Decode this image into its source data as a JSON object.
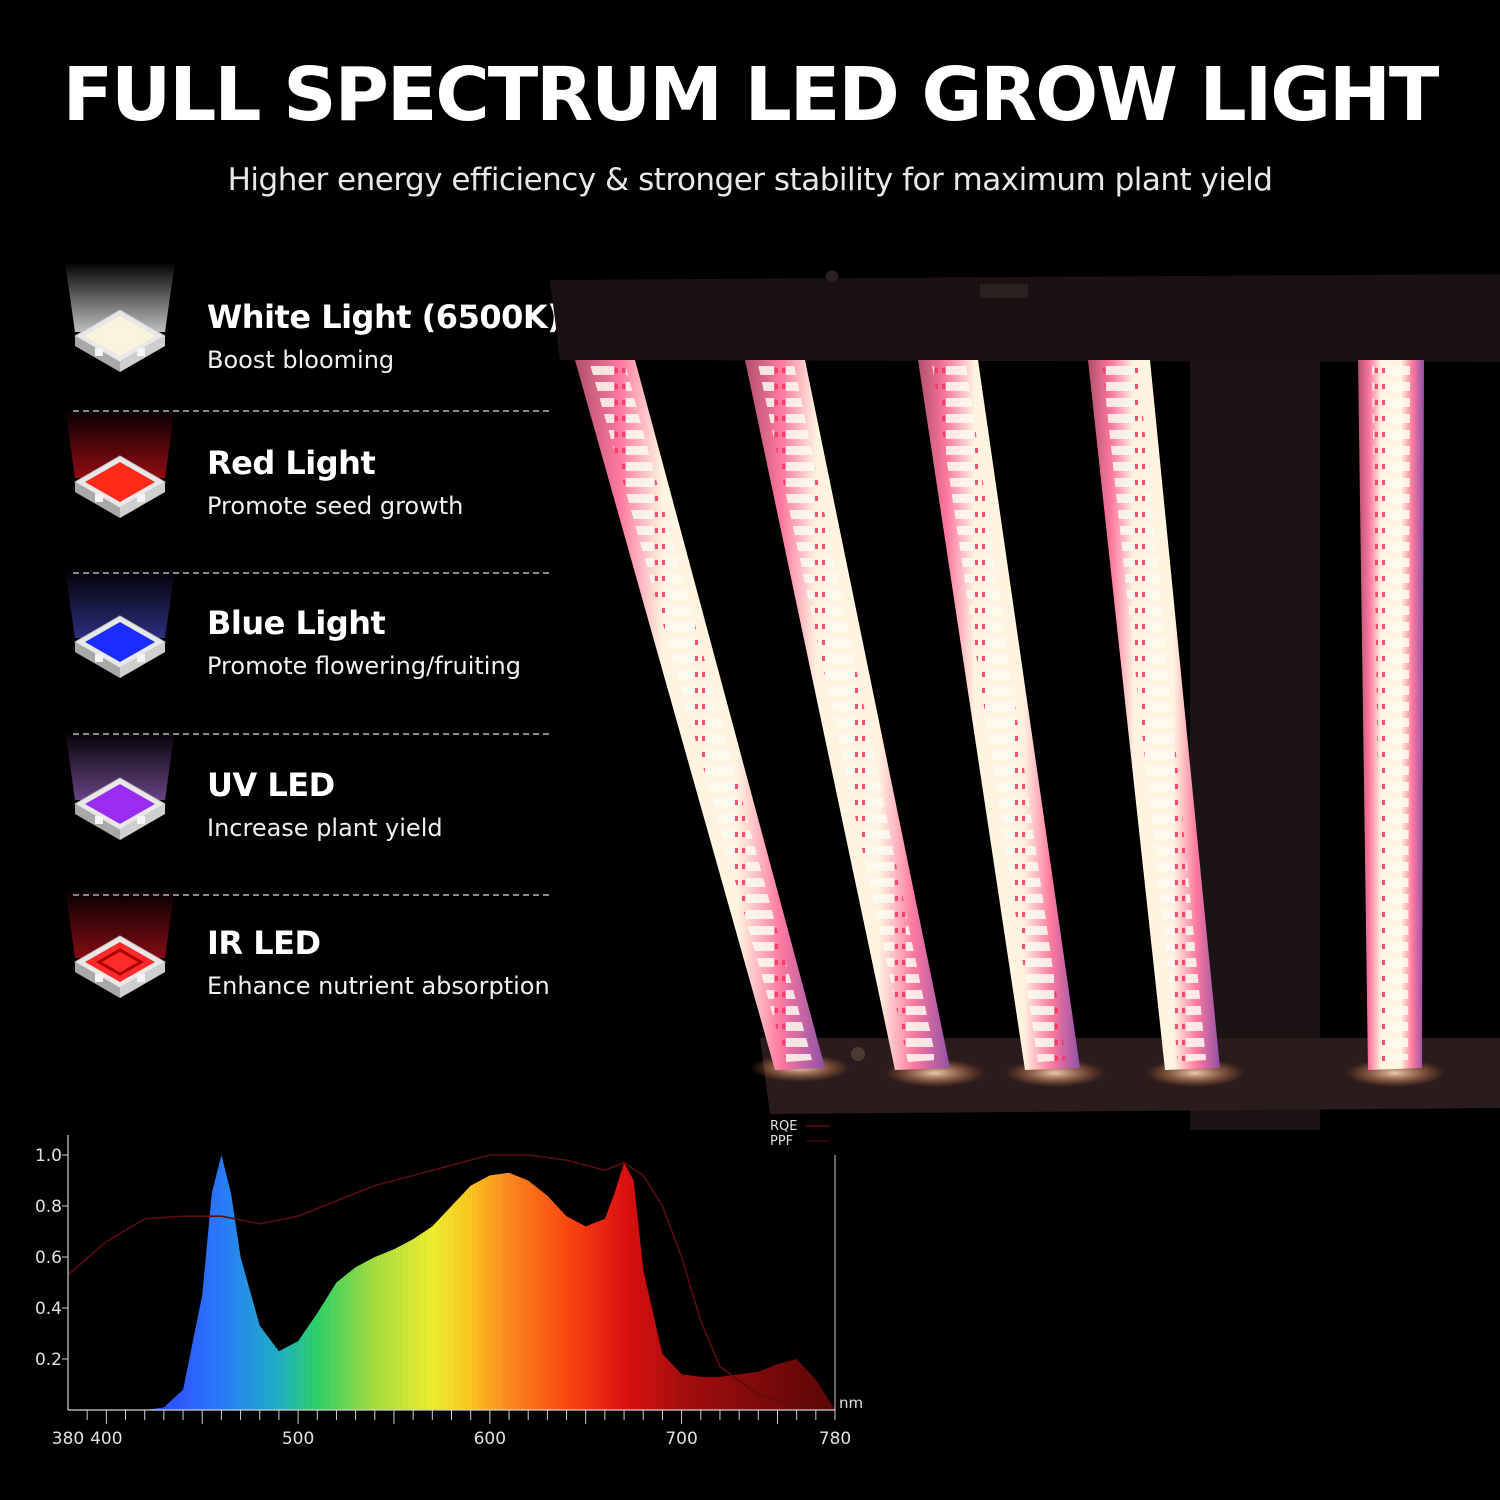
{
  "headline": "FULL SPECTRUM LED GROW LIGHT",
  "subheadline": "Higher energy efficiency & stronger stability for maximum plant yield",
  "features": [
    {
      "title": "White Light (6500K)",
      "description": "Boost blooming",
      "chip_color": "#fbf3dc",
      "glow_color": "#ffffff",
      "icon": "white-led-chip-icon"
    },
    {
      "title": "Red Light",
      "description": "Promote seed growth",
      "chip_color": "#ff2a1a",
      "glow_color": "#c4101a",
      "icon": "red-led-chip-icon"
    },
    {
      "title": "Blue Light",
      "description": "Promote flowering/fruiting",
      "chip_color": "#1b2cff",
      "glow_color": "#3b3ea8",
      "icon": "blue-led-chip-icon"
    },
    {
      "title": "UV LED",
      "description": "Increase plant yield",
      "chip_color": "#9a2cf0",
      "glow_color": "#8a5ab0",
      "icon": "uv-led-chip-icon"
    },
    {
      "title": "IR LED",
      "description": "Enhance nutrient absorption",
      "chip_color": "#ff2a2a",
      "glow_color": "#b0101a",
      "icon": "ir-led-chip-icon"
    }
  ],
  "chart_data": {
    "type": "area",
    "xlabel": "nm",
    "ylabel": "",
    "xlim": [
      380,
      780
    ],
    "ylim": [
      0,
      1.0
    ],
    "x_ticks": [
      380,
      400,
      500,
      600,
      700,
      780
    ],
    "y_ticks": [
      0.2,
      0.4,
      0.6,
      0.8,
      1.0
    ],
    "legend": [
      "RQE",
      "PPF"
    ],
    "legend_placement": "top-right",
    "series": [
      {
        "name": "PPF",
        "x": [
          380,
          420,
          430,
          440,
          450,
          455,
          460,
          465,
          470,
          480,
          490,
          500,
          510,
          520,
          530,
          540,
          550,
          560,
          570,
          580,
          590,
          600,
          610,
          620,
          630,
          640,
          650,
          660,
          665,
          670,
          675,
          680,
          690,
          700,
          710,
          720,
          730,
          740,
          750,
          760,
          770,
          780
        ],
        "y": [
          0,
          0,
          0.01,
          0.08,
          0.45,
          0.85,
          1.0,
          0.85,
          0.6,
          0.33,
          0.23,
          0.27,
          0.38,
          0.5,
          0.56,
          0.6,
          0.63,
          0.67,
          0.72,
          0.8,
          0.88,
          0.92,
          0.93,
          0.9,
          0.84,
          0.76,
          0.72,
          0.75,
          0.85,
          0.97,
          0.9,
          0.55,
          0.22,
          0.14,
          0.13,
          0.13,
          0.14,
          0.15,
          0.18,
          0.2,
          0.12,
          0.0
        ]
      },
      {
        "name": "RQE",
        "x": [
          380,
          400,
          420,
          440,
          460,
          480,
          500,
          520,
          540,
          560,
          580,
          600,
          620,
          640,
          660,
          670,
          680,
          690,
          700,
          710,
          720,
          740,
          760,
          780
        ],
        "y": [
          0.53,
          0.66,
          0.75,
          0.76,
          0.76,
          0.73,
          0.76,
          0.82,
          0.88,
          0.92,
          0.96,
          1.0,
          1.0,
          0.98,
          0.94,
          0.97,
          0.92,
          0.8,
          0.6,
          0.35,
          0.17,
          0.06,
          0.02,
          0.0
        ]
      }
    ]
  }
}
